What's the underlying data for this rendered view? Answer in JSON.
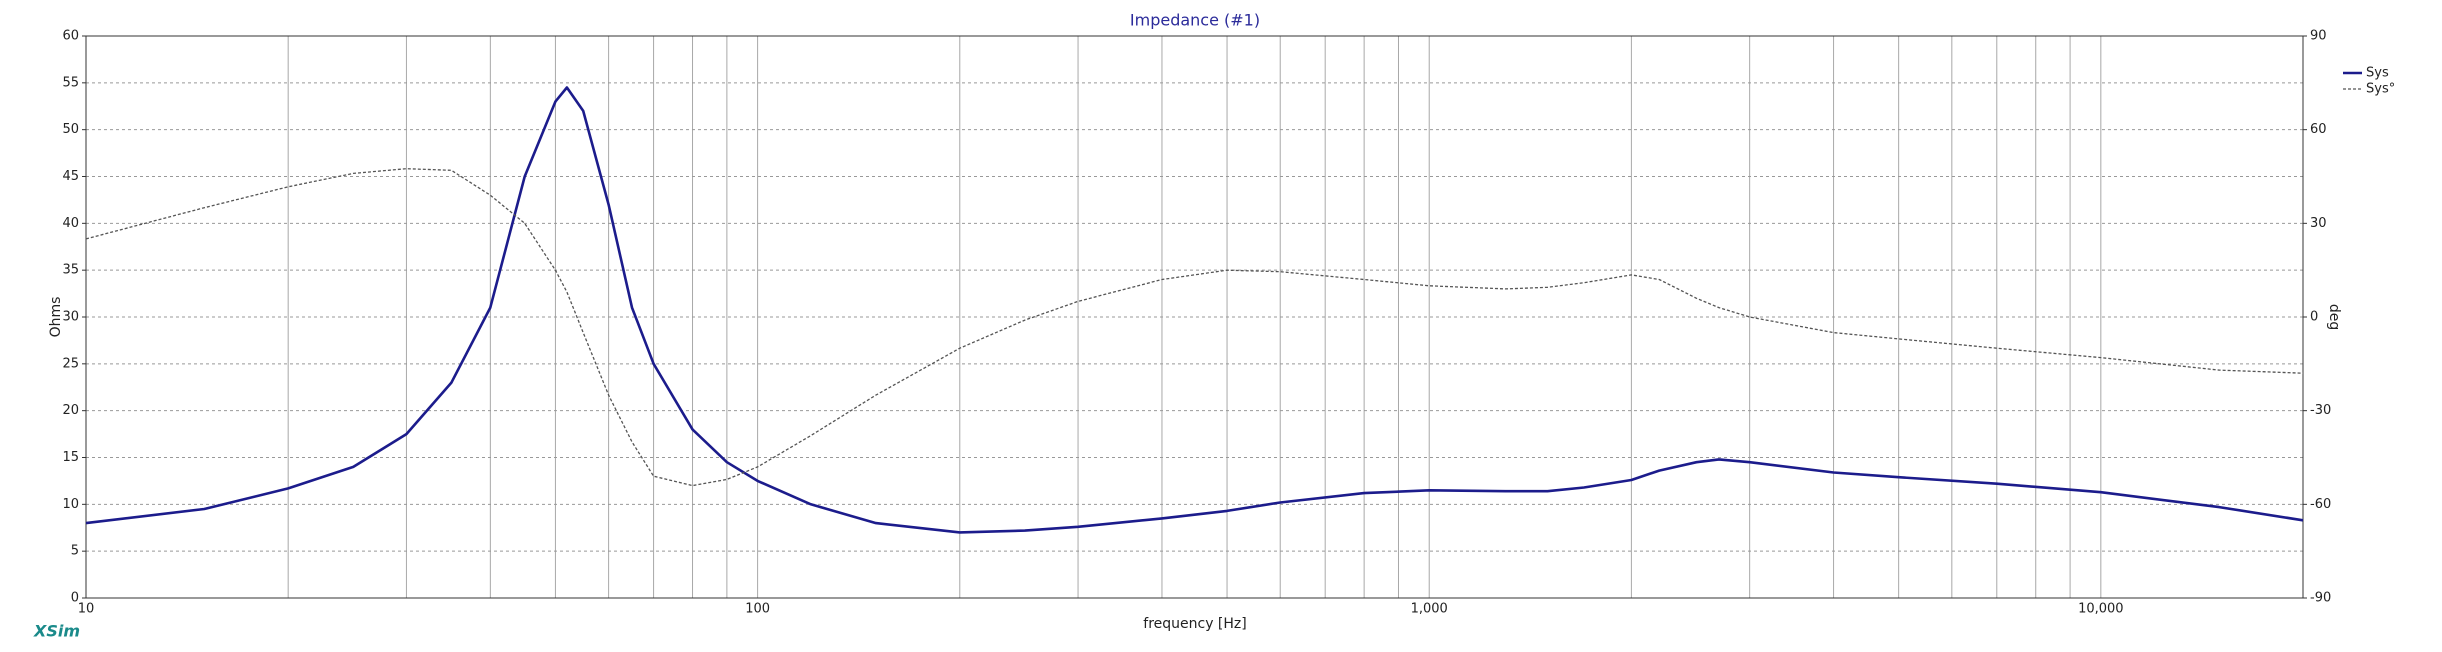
{
  "chart_data": {
    "type": "line",
    "title": "Impedance (#1)",
    "xlabel": "frequency [Hz]",
    "ylabel": "Ohms",
    "y2label": "deg",
    "xscale": "log",
    "xlim": [
      10,
      20000
    ],
    "xticks": [
      10,
      100,
      {
        "value": 1000,
        "label": "1,000"
      },
      {
        "value": 10000,
        "label": "10,000"
      }
    ],
    "xminor": [
      20,
      30,
      40,
      50,
      60,
      70,
      80,
      90,
      200,
      300,
      400,
      500,
      600,
      700,
      800,
      900,
      2000,
      3000,
      4000,
      5000,
      6000,
      7000,
      8000,
      9000
    ],
    "ylim": [
      0,
      60
    ],
    "yticks": [
      0,
      5,
      10,
      15,
      20,
      25,
      30,
      35,
      40,
      45,
      50,
      55,
      60
    ],
    "y2lim": [
      -90,
      90
    ],
    "y2ticks": [
      -90,
      -60,
      -30,
      0,
      30,
      60,
      90
    ],
    "grid": true,
    "legend": "right",
    "x": [
      10,
      15,
      20,
      25,
      30,
      35,
      40,
      45,
      50,
      52,
      55,
      60,
      65,
      70,
      80,
      90,
      100,
      120,
      150,
      200,
      250,
      300,
      400,
      500,
      600,
      800,
      1000,
      1300,
      1500,
      1700,
      2000,
      2200,
      2500,
      2700,
      3000,
      4000,
      5000,
      7000,
      10000,
      15000,
      20000
    ],
    "series": [
      {
        "name": "Sys",
        "color": "#1c1c8c",
        "linestyle": "solid",
        "values": [
          8,
          9.5,
          11.7,
          14,
          17.5,
          23,
          31,
          45,
          53,
          54.5,
          52,
          42,
          31,
          25,
          18,
          14.5,
          12.5,
          10,
          8,
          7,
          7.2,
          7.6,
          8.5,
          9.3,
          10.2,
          11.2,
          11.5,
          11.4,
          11.4,
          11.8,
          12.6,
          13.6,
          14.5,
          14.8,
          14.5,
          13.4,
          12.9,
          12.2,
          11.3,
          9.7,
          8.3
        ]
      },
      {
        "name": "Sys°",
        "color": "#555555",
        "linestyle": "dashed",
        "axis": "y2",
        "values": [
          25,
          35,
          41.7,
          46,
          47.5,
          47,
          39,
          30,
          15,
          8,
          -5,
          -25,
          -40,
          -51,
          -54,
          -52,
          -48,
          -38,
          -25,
          -10,
          -1,
          5,
          12,
          15,
          14.5,
          12,
          10,
          9,
          9.5,
          11,
          13.5,
          12,
          6,
          3,
          0,
          -5,
          -7,
          -10,
          -13,
          -17,
          -18
        ]
      }
    ]
  },
  "logo": "XSim"
}
